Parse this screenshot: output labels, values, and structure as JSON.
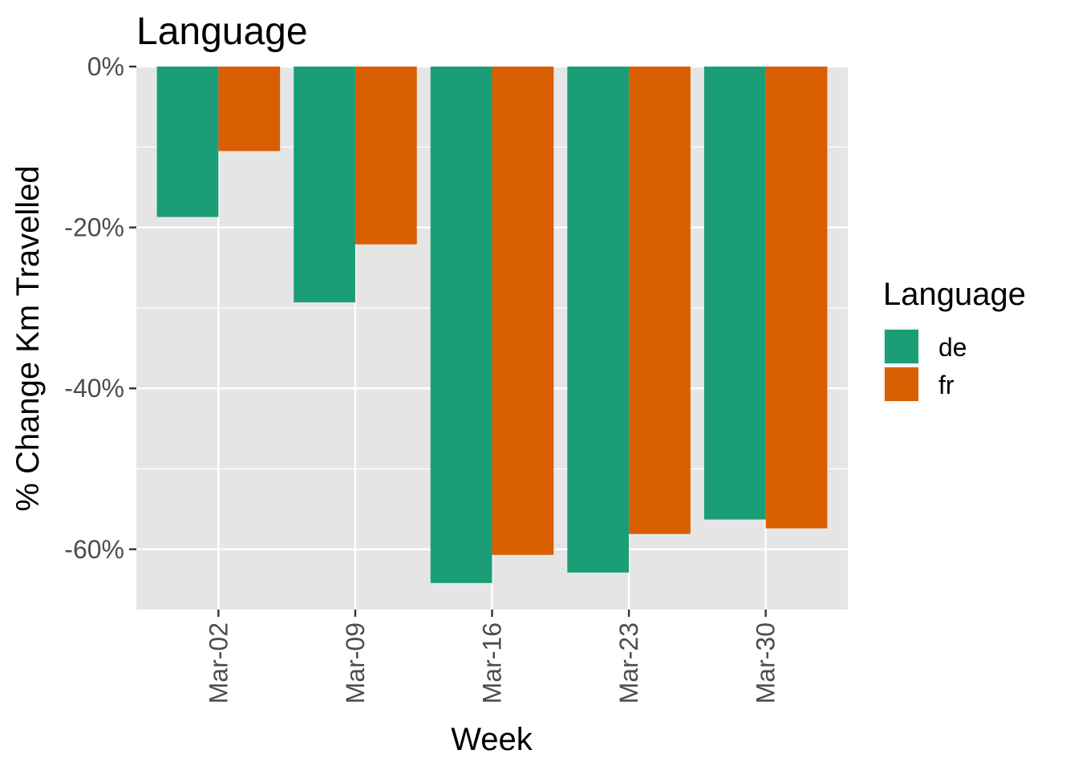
{
  "chart_data": {
    "type": "bar",
    "title": "Language",
    "xlabel": "Week",
    "ylabel": "% Change Km Travelled",
    "categories": [
      "Mar-02",
      "Mar-09",
      "Mar-16",
      "Mar-23",
      "Mar-30"
    ],
    "series": [
      {
        "name": "de",
        "color": "#1b9e77",
        "values": [
          -18.7,
          -29.3,
          -64.2,
          -62.9,
          -56.3
        ]
      },
      {
        "name": "fr",
        "color": "#d95f02",
        "values": [
          -10.5,
          -22.1,
          -60.7,
          -58.1,
          -57.4
        ]
      }
    ],
    "ylim": [
      -67.5,
      0
    ],
    "yticks": [
      0,
      -20,
      -40,
      -60
    ],
    "ytick_labels": [
      "0%",
      "-20%",
      "-40%",
      "-60%"
    ],
    "legend": {
      "title": "Language",
      "position": "right"
    },
    "grid": true,
    "panel_background": "#e5e5e5"
  }
}
